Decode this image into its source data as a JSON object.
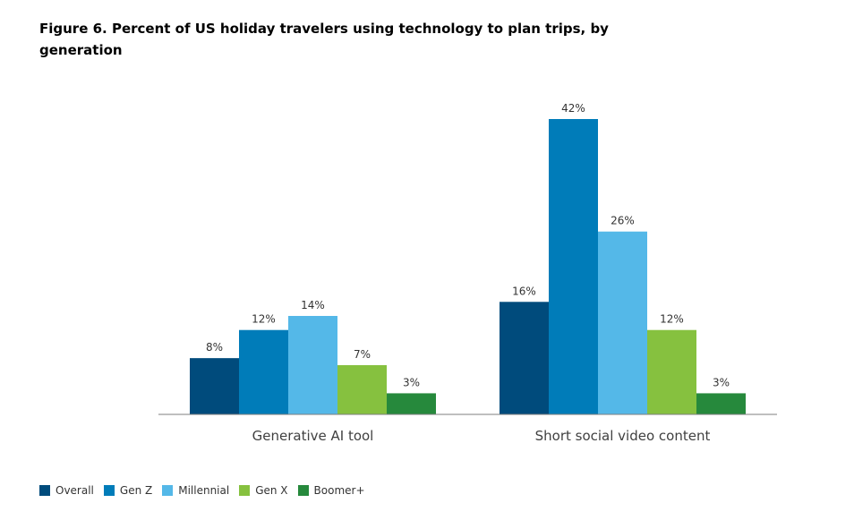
{
  "chart_data": {
    "type": "bar",
    "title": "Figure 6. Percent of US holiday travelers using technology to plan trips, by generation",
    "categories": [
      "Generative AI tool",
      "Short social video content"
    ],
    "series": [
      {
        "name": "Overall",
        "values": [
          8,
          16
        ],
        "labels": [
          "8%",
          "16%"
        ],
        "color": "#004b7c"
      },
      {
        "name": "Gen Z",
        "values": [
          12,
          42
        ],
        "labels": [
          "12%",
          "42%"
        ],
        "color": "#007cb9"
      },
      {
        "name": "Millennial",
        "values": [
          14,
          26
        ],
        "labels": [
          "14%",
          "26%"
        ],
        "color": "#54b8e8"
      },
      {
        "name": "Gen X",
        "values": [
          7,
          12
        ],
        "labels": [
          "7%",
          "12%"
        ],
        "color": "#86c13f"
      },
      {
        "name": "Boomer+",
        "values": [
          3,
          3
        ],
        "labels": [
          "3%",
          "3%"
        ],
        "color": "#26893c"
      }
    ],
    "ylim": [
      0,
      42
    ],
    "grid": false,
    "legend_position": "bottom-left",
    "xlabel": "",
    "ylabel": ""
  }
}
